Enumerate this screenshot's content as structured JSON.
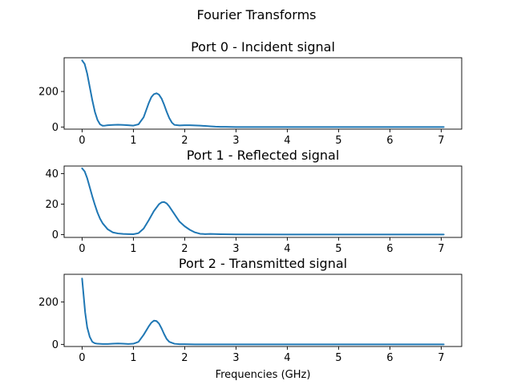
{
  "chart_data": {
    "title": "Fourier Transforms",
    "xlabel": "Frequencies (GHz)",
    "line_color": "#1f77b4",
    "panels": [
      {
        "type": "line",
        "title": "Port 0 - Incident signal",
        "xlim": [
          -0.35,
          7.4
        ],
        "ylim": [
          -12,
          390
        ],
        "xticks": [
          0,
          1,
          2,
          3,
          4,
          5,
          6,
          7
        ],
        "yticks": [
          0,
          200
        ],
        "x": [
          0,
          0.05,
          0.1,
          0.15,
          0.2,
          0.25,
          0.3,
          0.35,
          0.4,
          0.45,
          0.5,
          0.6,
          0.7,
          0.8,
          0.9,
          1.0,
          1.1,
          1.2,
          1.25,
          1.3,
          1.35,
          1.4,
          1.45,
          1.5,
          1.55,
          1.6,
          1.65,
          1.7,
          1.75,
          1.8,
          1.9,
          2.0,
          2.1,
          2.2,
          2.3,
          2.4,
          2.5,
          2.6,
          2.7,
          2.8,
          3.0,
          4.0,
          5.0,
          6.0,
          7.05
        ],
        "y": [
          375,
          355,
          300,
          225,
          150,
          85,
          40,
          15,
          7,
          8,
          10,
          12,
          13,
          12,
          10,
          8,
          15,
          55,
          95,
          135,
          168,
          185,
          190,
          182,
          160,
          125,
          85,
          50,
          25,
          12,
          9,
          10,
          10,
          9,
          8,
          6,
          4,
          2,
          1,
          1,
          0,
          0,
          0,
          0,
          0
        ]
      },
      {
        "type": "line",
        "title": "Port 1 - Reflected signal",
        "xlim": [
          -0.35,
          7.4
        ],
        "ylim": [
          -1.8,
          45
        ],
        "xticks": [
          0,
          1,
          2,
          3,
          4,
          5,
          6,
          7
        ],
        "yticks": [
          0,
          20,
          40
        ],
        "x": [
          0,
          0.05,
          0.1,
          0.15,
          0.2,
          0.25,
          0.3,
          0.35,
          0.4,
          0.5,
          0.6,
          0.7,
          0.8,
          0.9,
          1.0,
          1.1,
          1.2,
          1.3,
          1.4,
          1.5,
          1.55,
          1.6,
          1.65,
          1.7,
          1.8,
          1.9,
          2.0,
          2.1,
          2.2,
          2.3,
          2.4,
          2.5,
          2.7,
          3.0,
          4.0,
          5.0,
          6.0,
          7.05
        ],
        "y": [
          43.5,
          41.5,
          37,
          31,
          25,
          19.5,
          14.5,
          10.5,
          7.5,
          3.5,
          1.5,
          0.8,
          0.5,
          0.4,
          0.3,
          1,
          4,
          9.5,
          15.5,
          20,
          21.2,
          21.4,
          20.5,
          18.5,
          13.5,
          8.5,
          5.5,
          3.2,
          1.5,
          0.6,
          0.4,
          0.5,
          0.3,
          0.2,
          0.1,
          0.1,
          0.1,
          0.1
        ]
      },
      {
        "type": "line",
        "title": "Port 2 - Transmitted signal",
        "xlim": [
          -0.35,
          7.4
        ],
        "ylim": [
          -10,
          330
        ],
        "xticks": [
          0,
          1,
          2,
          3,
          4,
          5,
          6,
          7
        ],
        "yticks": [
          0,
          200
        ],
        "x": [
          0,
          0.03,
          0.06,
          0.1,
          0.15,
          0.2,
          0.25,
          0.3,
          0.4,
          0.5,
          0.6,
          0.7,
          0.8,
          0.9,
          1.0,
          1.1,
          1.2,
          1.3,
          1.35,
          1.4,
          1.45,
          1.5,
          1.55,
          1.6,
          1.65,
          1.7,
          1.8,
          1.9,
          2.0,
          2.2,
          2.5,
          3.0,
          4.0,
          5.0,
          6.0,
          7.05
        ],
        "y": [
          310,
          230,
          150,
          80,
          35,
          12,
          5,
          3,
          2,
          2,
          3,
          4,
          3,
          2,
          3,
          12,
          45,
          85,
          102,
          112,
          110,
          98,
          75,
          48,
          25,
          12,
          3,
          1,
          1,
          0,
          0,
          0,
          0,
          0,
          0,
          0
        ]
      }
    ]
  }
}
